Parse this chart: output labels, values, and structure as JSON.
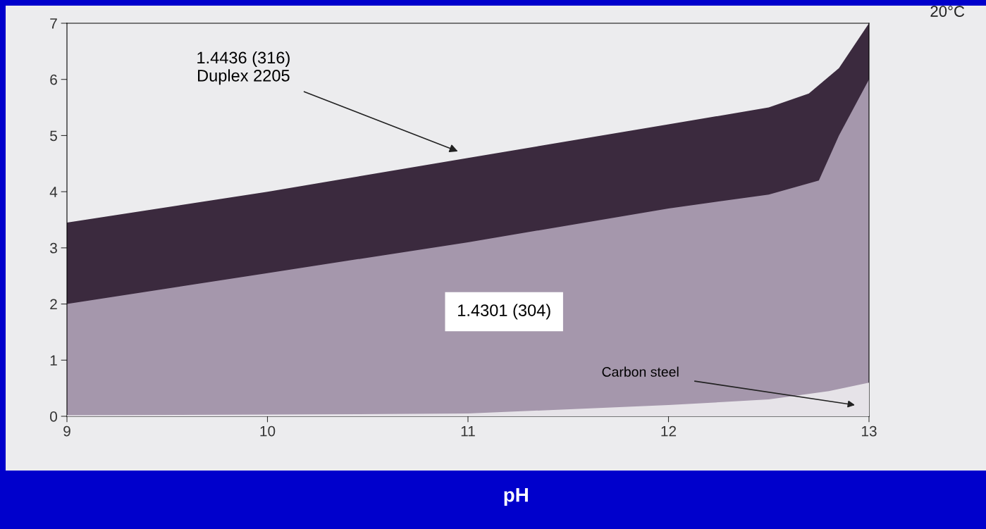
{
  "chart_data": {
    "type": "area",
    "xlabel": "pH",
    "xlim": [
      9,
      13
    ],
    "ylim": [
      0,
      7
    ],
    "xticks": [
      9,
      10,
      11,
      12,
      13
    ],
    "yticks": [
      0,
      1,
      2,
      3,
      4,
      5,
      6,
      7
    ],
    "grid": false,
    "series": [
      {
        "color": "#3b2a3e",
        "x": [
          9,
          10,
          11,
          12,
          12.5,
          12.7,
          12.85,
          13
        ],
        "values": [
          3.45,
          4.0,
          4.6,
          5.2,
          5.5,
          5.75,
          6.2,
          7.0
        ]
      },
      {
        "color": "#a597ac",
        "x": [
          9,
          10,
          11,
          12,
          12.5,
          12.75,
          12.85,
          13
        ],
        "values": [
          2.0,
          2.55,
          3.1,
          3.7,
          3.95,
          4.2,
          5.0,
          6.0
        ]
      },
      {
        "color": "#e6e3e8",
        "x": [
          9,
          10,
          11,
          12,
          12.5,
          12.8,
          13
        ],
        "values": [
          0.02,
          0.03,
          0.05,
          0.2,
          0.3,
          0.45,
          0.6
        ]
      }
    ],
    "annotations": [
      "1.4436 (316)\nDuplex 2205",
      "1.4301 (304)",
      "Carbon steel",
      "20°C"
    ]
  }
}
